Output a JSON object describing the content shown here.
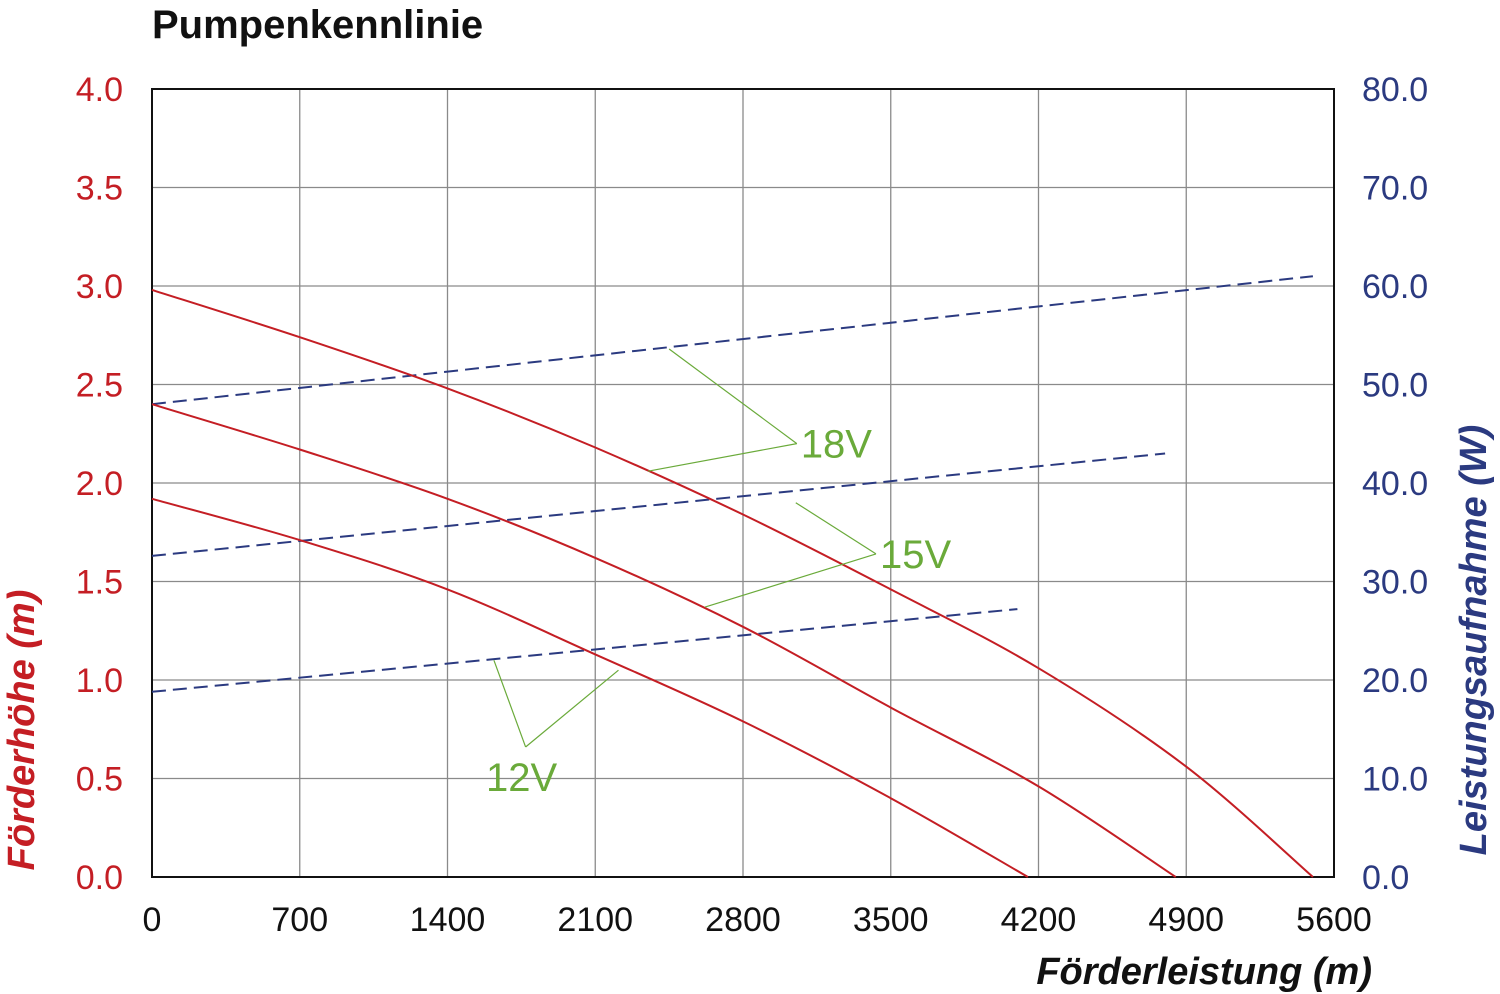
{
  "chart_data": {
    "type": "line",
    "title": "Pumpenkennlinie",
    "xlabel": "Förderleistung (m)",
    "ylabel_left": "Förderhöhe (m)",
    "ylabel_right": "Leistungsaufnahme (W)",
    "xlim": [
      0,
      5600
    ],
    "ylim_left": [
      0,
      4.0
    ],
    "ylim_right": [
      0,
      80.0
    ],
    "x_ticks": [
      "0",
      "700",
      "1400",
      "2100",
      "2800",
      "3500",
      "4200",
      "4900",
      "5600"
    ],
    "y_ticks_left": [
      "0.0",
      "0.5",
      "1.0",
      "1.5",
      "2.0",
      "2.5",
      "3.0",
      "3.5",
      "4.0"
    ],
    "y_ticks_right": [
      "0.0",
      "10.0",
      "20.0",
      "30.0",
      "40.0",
      "50.0",
      "60.0",
      "70.0",
      "80.0"
    ],
    "grid": true,
    "colors": {
      "head": "#c41e24",
      "power": "#2b3a80",
      "annotation": "#6aaa3a",
      "grid": "#8a8a8a",
      "left_axis_text": "#c41e24",
      "right_axis_text": "#2b3a80"
    },
    "head_series": [
      {
        "voltage": "18V",
        "axis": "left",
        "x": [
          0,
          700,
          1400,
          2100,
          2800,
          3500,
          4200,
          4900,
          5500
        ],
        "y": [
          2.98,
          2.74,
          2.48,
          2.18,
          1.84,
          1.46,
          1.06,
          0.56,
          0.0
        ]
      },
      {
        "voltage": "15V",
        "axis": "left",
        "x": [
          0,
          700,
          1400,
          2100,
          2800,
          3500,
          4200,
          4850
        ],
        "y": [
          2.4,
          2.17,
          1.92,
          1.62,
          1.27,
          0.86,
          0.46,
          0.0
        ]
      },
      {
        "voltage": "12V",
        "axis": "left",
        "x": [
          0,
          700,
          1400,
          2100,
          2800,
          3500,
          4150
        ],
        "y": [
          1.92,
          1.71,
          1.46,
          1.13,
          0.79,
          0.4,
          0.0
        ]
      }
    ],
    "power_series": [
      {
        "voltage": "18V",
        "axis": "right",
        "x": [
          0,
          5500
        ],
        "y": [
          48.0,
          61.0
        ]
      },
      {
        "voltage": "15V",
        "axis": "right",
        "x": [
          0,
          4800
        ],
        "y": [
          32.6,
          43.0
        ]
      },
      {
        "voltage": "12V",
        "axis": "right",
        "x": [
          0,
          4100
        ],
        "y": [
          18.8,
          27.2
        ]
      }
    ],
    "annotations": [
      {
        "text": "18V",
        "x": 3055,
        "y": 2.2,
        "pointers": [
          {
            "x": 2450,
            "y": 2.68
          },
          {
            "x": 2350,
            "y": 2.06
          }
        ]
      },
      {
        "text": "15V",
        "x": 3430,
        "y": 1.64,
        "pointers": [
          {
            "x": 3050,
            "y": 1.9
          },
          {
            "x": 2620,
            "y": 1.37
          }
        ]
      },
      {
        "text": "12V",
        "x": 1770,
        "y": 0.66,
        "pointers": [
          {
            "x": 1620,
            "y": 1.1
          },
          {
            "x": 2210,
            "y": 1.05
          }
        ]
      }
    ]
  }
}
